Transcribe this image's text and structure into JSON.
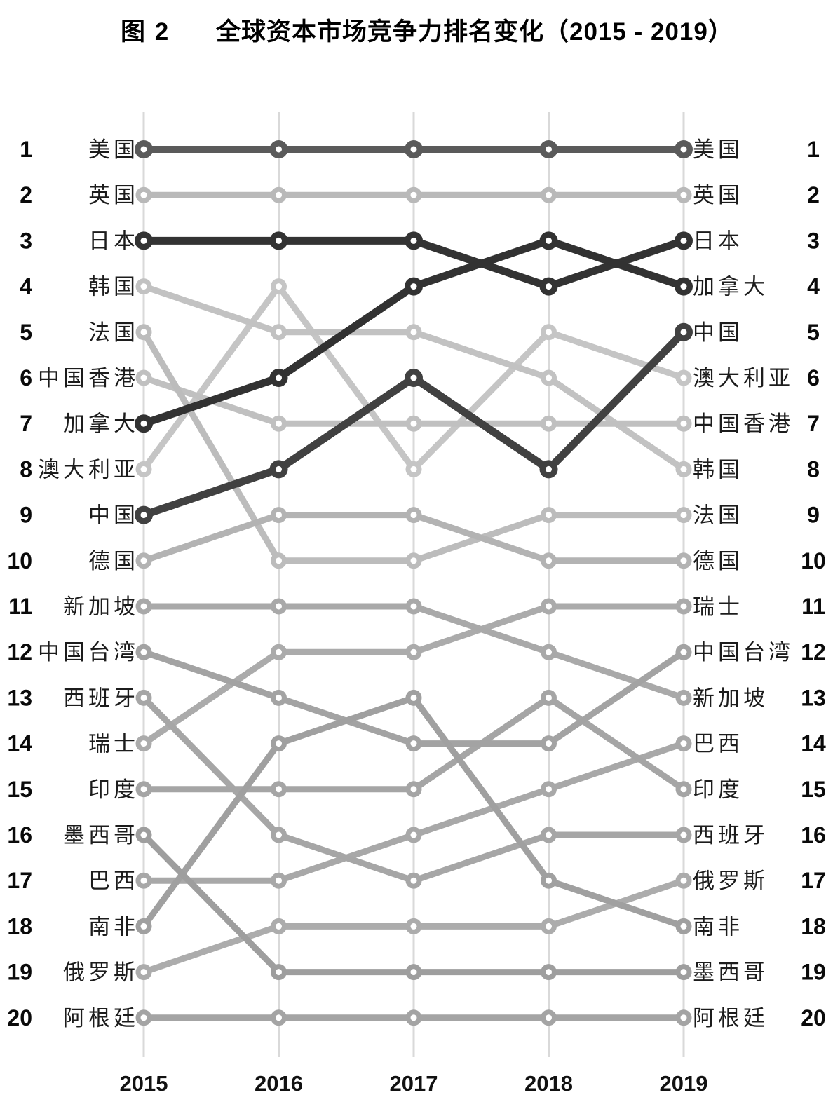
{
  "title": {
    "figure_label": "图 2",
    "text": "全球资本市场竞争力排名变化（2015 - 2019）"
  },
  "chart_data": {
    "type": "line",
    "subtype": "bump-chart-ranking",
    "x_labels": [
      "2015",
      "2016",
      "2017",
      "2018",
      "2019"
    ],
    "rank_numbers": [
      1,
      2,
      3,
      4,
      5,
      6,
      7,
      8,
      9,
      10,
      11,
      12,
      13,
      14,
      15,
      16,
      17,
      18,
      19,
      20
    ],
    "ylim": [
      1,
      20
    ],
    "grid": "vertical-gridlines-only",
    "legend_position": "none",
    "left_axis_note": "country labels show 2015 rank order",
    "right_axis_note": "country labels show 2019 rank order",
    "gridline_color": "#d9d9d9",
    "series": [
      {
        "key": "usa",
        "name": "美国",
        "color": "#5a5a5a",
        "width": 10,
        "ranks": [
          1,
          1,
          1,
          1,
          1
        ]
      },
      {
        "key": "uk",
        "name": "英国",
        "color": "#b9b9b9",
        "width": 9,
        "ranks": [
          2,
          2,
          2,
          2,
          2
        ]
      },
      {
        "key": "japan",
        "name": "日本",
        "color": "#333333",
        "width": 11,
        "ranks": [
          3,
          3,
          3,
          4,
          3
        ]
      },
      {
        "key": "south-korea",
        "name": "韩国",
        "color": "#c2c2c2",
        "width": 9,
        "ranks": [
          4,
          5,
          5,
          6,
          8
        ]
      },
      {
        "key": "france",
        "name": "法国",
        "color": "#bcbcbc",
        "width": 9,
        "ranks": [
          5,
          10,
          10,
          9,
          9
        ]
      },
      {
        "key": "hong-kong",
        "name": "中国香港",
        "color": "#c0c0c0",
        "width": 9,
        "ranks": [
          6,
          7,
          7,
          7,
          7
        ]
      },
      {
        "key": "canada",
        "name": "加拿大",
        "color": "#323232",
        "width": 11,
        "ranks": [
          7,
          6,
          4,
          3,
          4
        ]
      },
      {
        "key": "australia",
        "name": "澳大利亚",
        "color": "#c5c5c5",
        "width": 9,
        "ranks": [
          8,
          4,
          8,
          5,
          6
        ]
      },
      {
        "key": "china",
        "name": "中国",
        "color": "#414141",
        "width": 11,
        "ranks": [
          9,
          8,
          6,
          8,
          5
        ]
      },
      {
        "key": "germany",
        "name": "德国",
        "color": "#b3b3b3",
        "width": 9,
        "ranks": [
          10,
          9,
          9,
          10,
          10
        ]
      },
      {
        "key": "singapore",
        "name": "新加坡",
        "color": "#a9a9a9",
        "width": 9,
        "ranks": [
          11,
          11,
          11,
          12,
          13
        ]
      },
      {
        "key": "taiwan",
        "name": "中国台湾",
        "color": "#a3a3a3",
        "width": 9,
        "ranks": [
          12,
          13,
          14,
          14,
          12
        ]
      },
      {
        "key": "spain",
        "name": "西班牙",
        "color": "#a6a6a6",
        "width": 9,
        "ranks": [
          13,
          16,
          17,
          16,
          16
        ]
      },
      {
        "key": "switzerland",
        "name": "瑞士",
        "color": "#ababab",
        "width": 9,
        "ranks": [
          14,
          12,
          12,
          11,
          11
        ]
      },
      {
        "key": "india",
        "name": "印度",
        "color": "#a5a5a5",
        "width": 9,
        "ranks": [
          15,
          15,
          15,
          13,
          15
        ]
      },
      {
        "key": "mexico",
        "name": "墨西哥",
        "color": "#9e9e9e",
        "width": 9,
        "ranks": [
          16,
          19,
          19,
          19,
          19
        ]
      },
      {
        "key": "brazil",
        "name": "巴西",
        "color": "#a8a8a8",
        "width": 9,
        "ranks": [
          17,
          17,
          16,
          15,
          14
        ]
      },
      {
        "key": "south-africa",
        "name": "南非",
        "color": "#a0a0a0",
        "width": 9,
        "ranks": [
          18,
          14,
          13,
          17,
          18
        ]
      },
      {
        "key": "russia",
        "name": "俄罗斯",
        "color": "#acacac",
        "width": 9,
        "ranks": [
          19,
          18,
          18,
          18,
          17
        ]
      },
      {
        "key": "argentina",
        "name": "阿根廷",
        "color": "#a4a4a4",
        "width": 9,
        "ranks": [
          20,
          20,
          20,
          20,
          20
        ]
      }
    ]
  }
}
